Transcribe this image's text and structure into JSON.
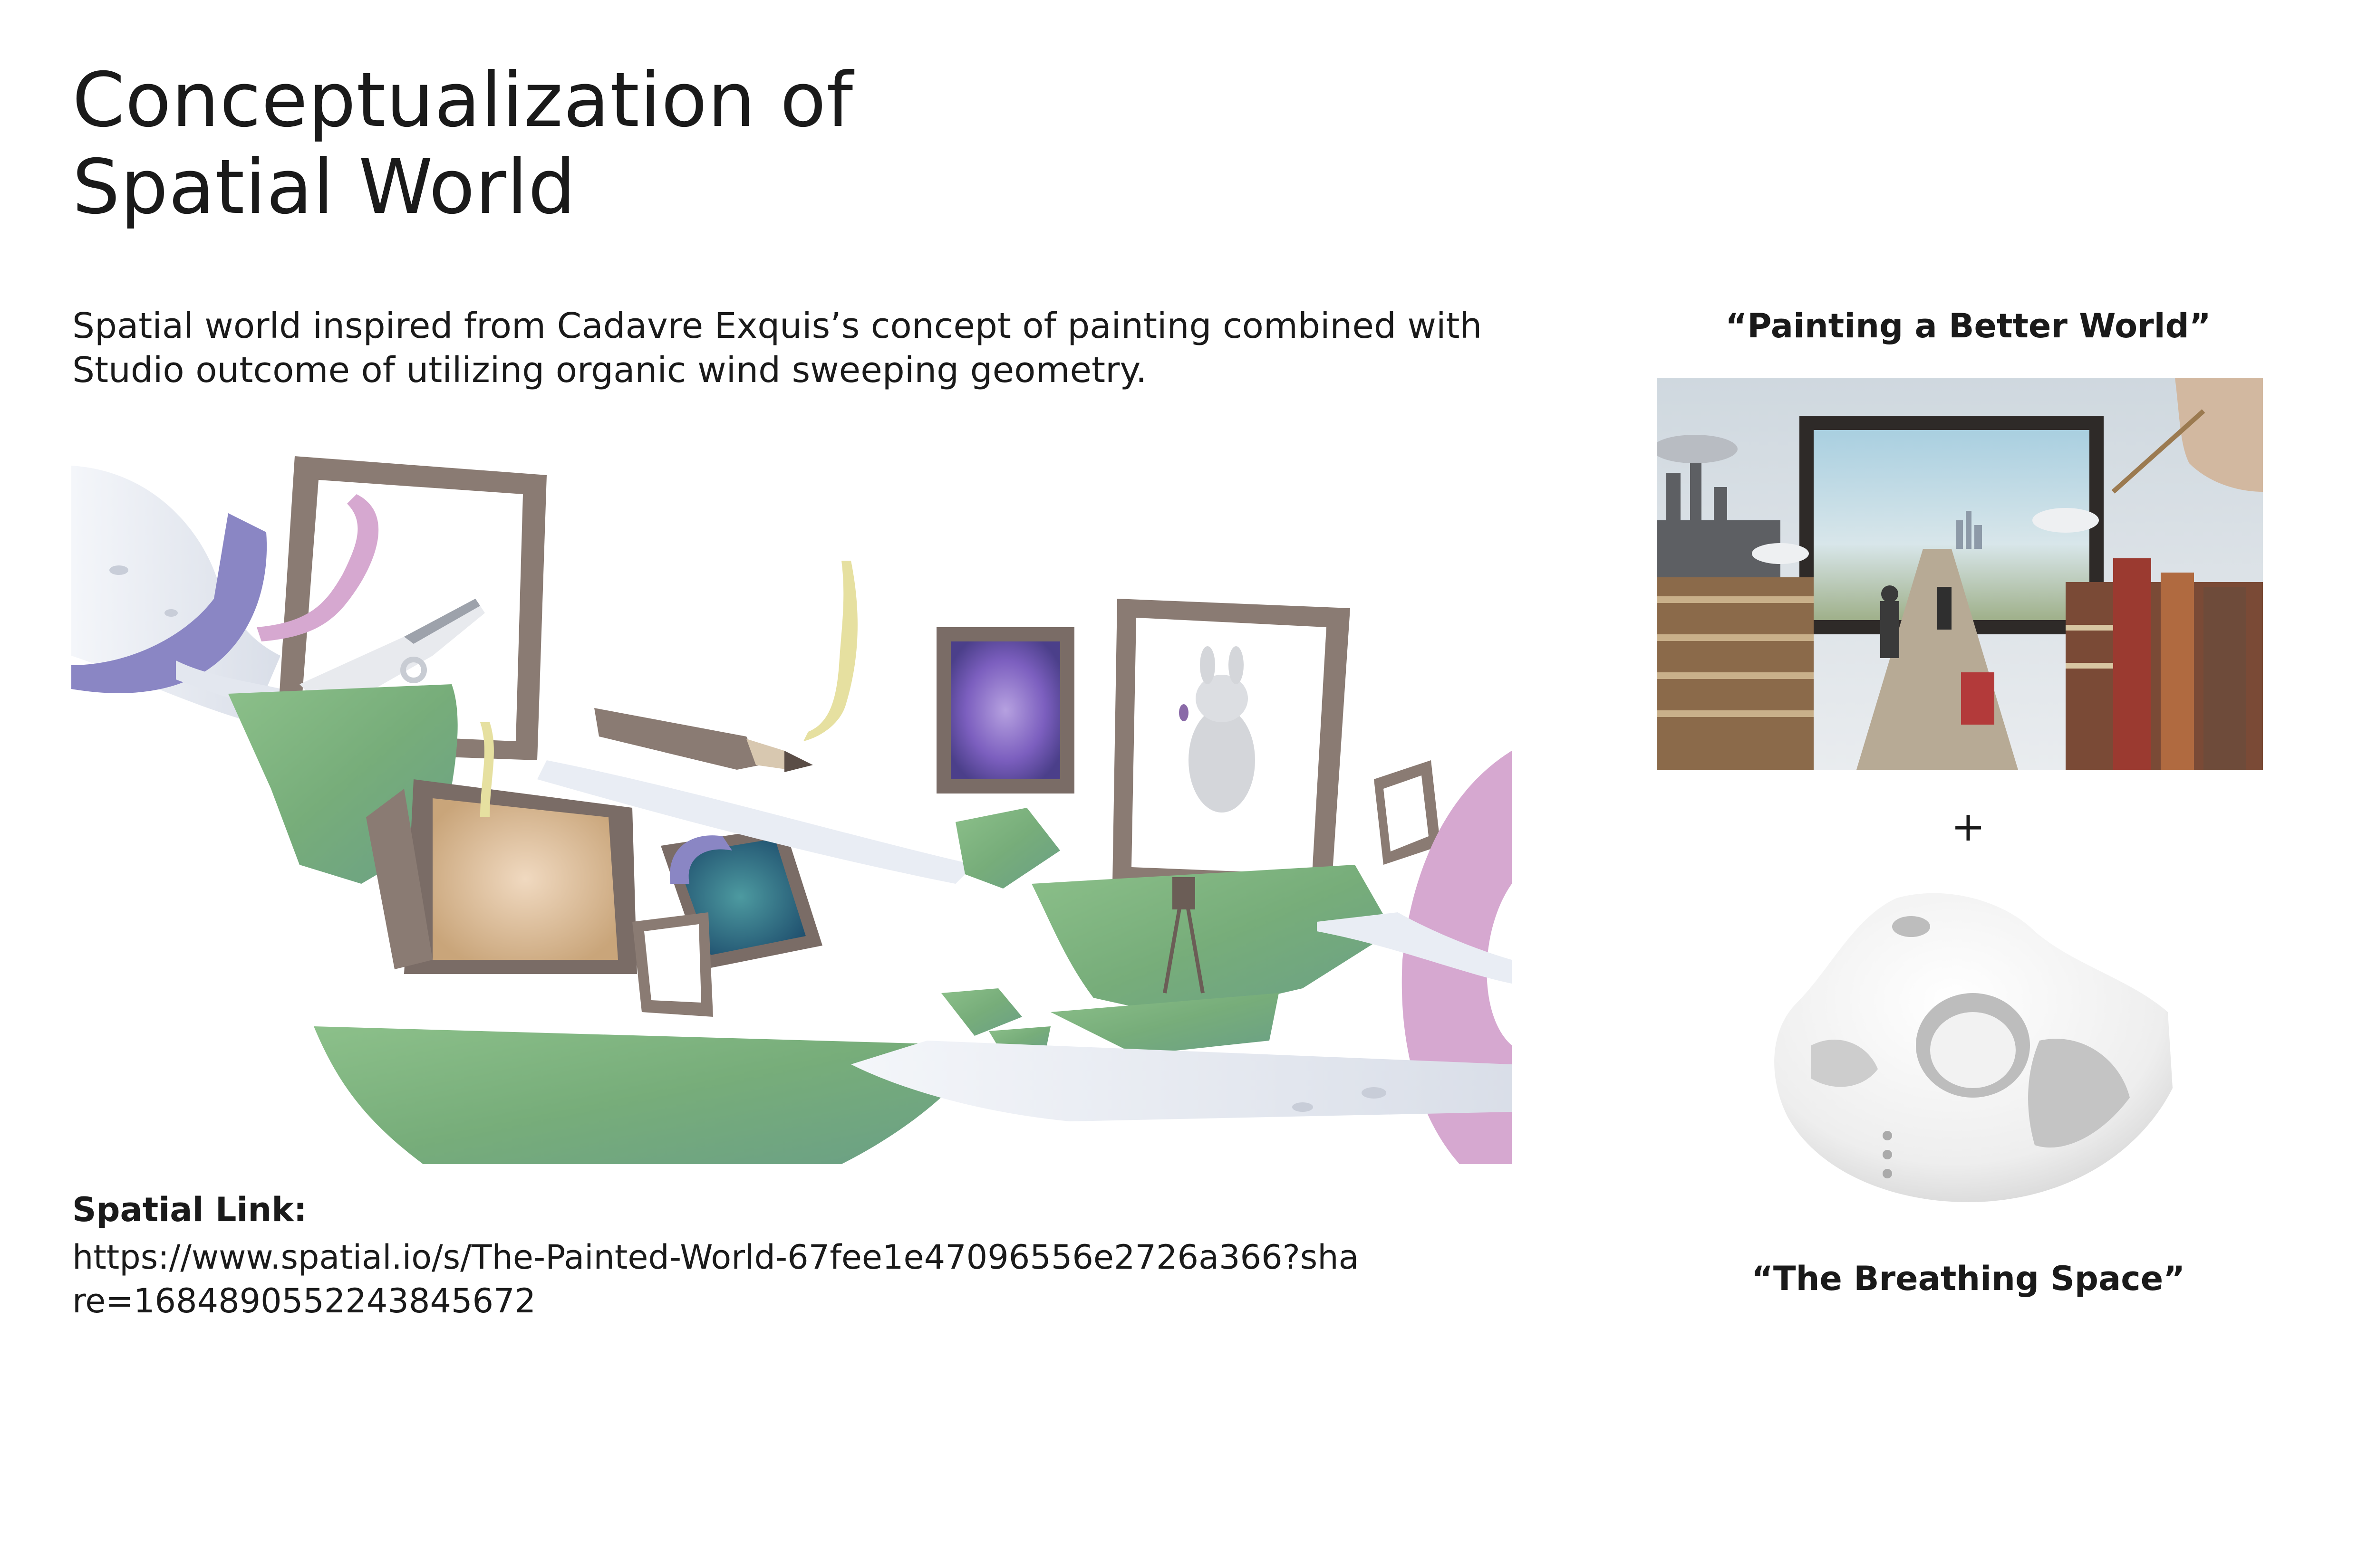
{
  "title": {
    "line1": "Conceptualization of",
    "line2": "Spatial World"
  },
  "description": {
    "line1": "Spatial world inspired from Cadavre Exquis’s concept of painting combined with",
    "line2": "Studio outcome of utilizing organic wind sweeping geometry."
  },
  "spatial_link": {
    "label": "Spatial Link:",
    "url_line1": "https://www.spatial.io/s/The-Painted-World-67fee1e47096556e2726a366?sha",
    "url_line2": "re=1684890552243845672"
  },
  "right_panel": {
    "top_caption": "“Painting a Better World”",
    "plus": "+",
    "bottom_caption": "“The Breathing Space”"
  },
  "images": {
    "scene": "spatial-world-render",
    "collage": "painting-a-better-world-collage",
    "mask": "breathing-space-mask-model"
  },
  "colors": {
    "text": "#1a1a1a",
    "frame": "#8a7b73",
    "island_green": "#7fb07a",
    "lavender": "#8a86c4",
    "pink": "#d6a8d0"
  }
}
